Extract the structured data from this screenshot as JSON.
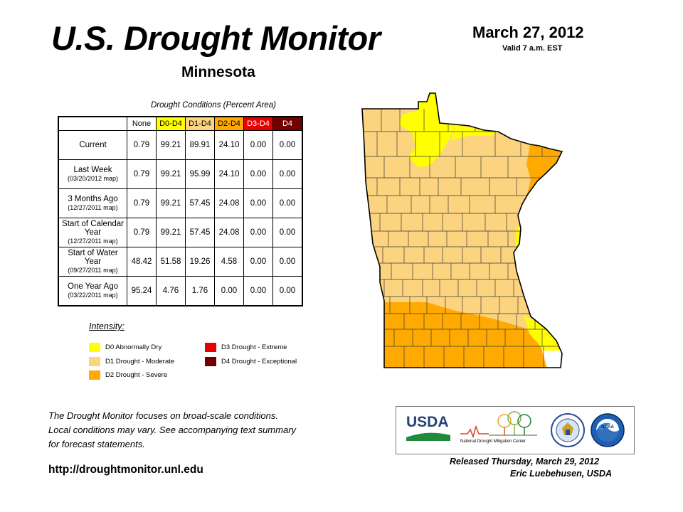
{
  "header": {
    "title": "U.S. Drought Monitor",
    "region": "Minnesota",
    "date": "March 27, 2012",
    "valid": "Valid 7 a.m. EST"
  },
  "table": {
    "caption": "Drought Conditions (Percent Area)",
    "columns": [
      {
        "label": "None",
        "color": "#ffffff"
      },
      {
        "label": "D0-D4",
        "color": "#ffff00"
      },
      {
        "label": "D1-D4",
        "color": "#fcd37f"
      },
      {
        "label": "D2-D4",
        "color": "#ffaa00"
      },
      {
        "label": "D3-D4",
        "color": "#e60000"
      },
      {
        "label": "D4",
        "color": "#730000"
      }
    ],
    "rows": [
      {
        "label": "Current",
        "sub": "",
        "values": [
          "0.79",
          "99.21",
          "89.91",
          "24.10",
          "0.00",
          "0.00"
        ]
      },
      {
        "label": "Last Week",
        "sub": "(03/20/2012 map)",
        "values": [
          "0.79",
          "99.21",
          "95.99",
          "24.10",
          "0.00",
          "0.00"
        ]
      },
      {
        "label": "3 Months Ago",
        "sub": "(12/27/2011 map)",
        "values": [
          "0.79",
          "99.21",
          "57.45",
          "24.08",
          "0.00",
          "0.00"
        ]
      },
      {
        "label": "Start of Calendar Year",
        "sub": "(12/27/2011 map)",
        "values": [
          "0.79",
          "99.21",
          "57.45",
          "24.08",
          "0.00",
          "0.00"
        ]
      },
      {
        "label": "Start of Water Year",
        "sub": "(09/27/2011 map)",
        "values": [
          "48.42",
          "51.58",
          "19.26",
          "4.58",
          "0.00",
          "0.00"
        ]
      },
      {
        "label": "One Year Ago",
        "sub": "(03/22/2011 map)",
        "values": [
          "95.24",
          "4.76",
          "1.76",
          "0.00",
          "0.00",
          "0.00"
        ]
      }
    ]
  },
  "legend": {
    "title": "Intensity:",
    "items": [
      {
        "label": "D0 Abnormally Dry",
        "color": "#ffff00"
      },
      {
        "label": "D1 Drought - Moderate",
        "color": "#fcd37f"
      },
      {
        "label": "D2 Drought - Severe",
        "color": "#ffaa00"
      },
      {
        "label": "D3 Drought - Extreme",
        "color": "#e60000"
      },
      {
        "label": "D4 Drought - Exceptional",
        "color": "#730000"
      }
    ]
  },
  "note": [
    "The Drought Monitor focuses on broad-scale conditions.",
    "Local conditions may vary. See accompanying text summary",
    "for forecast statements."
  ],
  "url": "http://droughtmonitor.unl.edu",
  "logos": {
    "usda": "USDA",
    "ndmc_a": "National",
    "ndmc_b": "Drought Mitigation Center",
    "noaa": "NOAA"
  },
  "footer": {
    "released": "Released Thursday, March 29, 2012",
    "author": "Eric Luebehusen, USDA"
  },
  "map": {
    "colors": {
      "none": "#ffffff",
      "d0": "#ffff00",
      "d1": "#fcd37f",
      "d2": "#ffaa00",
      "border": "#3a3a3a"
    }
  }
}
